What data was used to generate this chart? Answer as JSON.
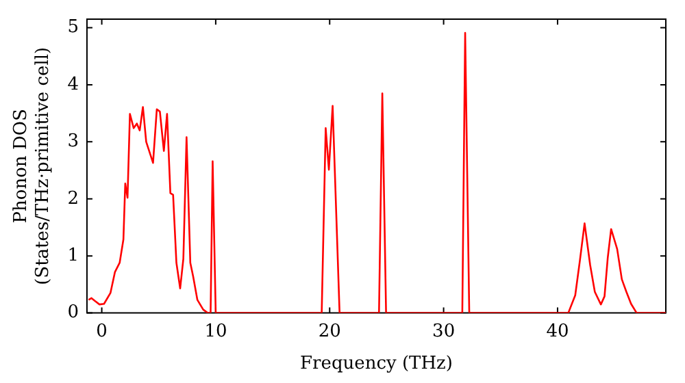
{
  "chart_data": {
    "type": "line",
    "xlabel": "Frequency (THz)",
    "ylabel": "Phonon DOS\n(States/THz·primitive cell)",
    "xlim": [
      -1.3,
      49.5
    ],
    "ylim": [
      0,
      5.15
    ],
    "xticks": [
      0,
      10,
      20,
      30,
      40
    ],
    "yticks": [
      0,
      1,
      2,
      3,
      4,
      5
    ],
    "grid": false,
    "legend": false,
    "marker": "none",
    "line_style": "solid",
    "series": [
      {
        "color": "#ff0000",
        "x": [
          -1.16,
          -0.9,
          -0.6,
          -0.2,
          0.2,
          0.76,
          1.16,
          1.57,
          1.9,
          2.06,
          2.26,
          2.47,
          2.8,
          3.08,
          3.33,
          3.61,
          3.9,
          4.5,
          4.83,
          5.1,
          5.45,
          5.73,
          6.02,
          6.26,
          6.55,
          6.88,
          7.16,
          7.44,
          7.77,
          8.02,
          8.39,
          8.9,
          9.3,
          9.55,
          9.73,
          10.0,
          19.3,
          19.65,
          19.93,
          20.26,
          20.87,
          24.33,
          24.62,
          24.95,
          31.64,
          31.89,
          32.25,
          40.94,
          41.55,
          41.96,
          42.37,
          42.86,
          43.27,
          43.8,
          44.12,
          44.4,
          44.7,
          45.23,
          45.64,
          46.04,
          46.45,
          46.94,
          49.5
        ],
        "values": [
          0.23,
          0.26,
          0.21,
          0.15,
          0.16,
          0.35,
          0.72,
          0.88,
          1.29,
          2.27,
          2.02,
          3.49,
          3.24,
          3.32,
          3.2,
          3.61,
          3.0,
          2.63,
          3.57,
          3.53,
          2.84,
          3.49,
          2.1,
          2.07,
          0.88,
          0.43,
          0.95,
          3.08,
          0.88,
          0.64,
          0.23,
          0.06,
          0,
          0,
          2.66,
          0,
          0,
          3.24,
          2.51,
          3.63,
          0,
          0,
          3.85,
          0,
          0,
          4.91,
          0,
          0,
          0.31,
          0.92,
          1.57,
          0.84,
          0.37,
          0.15,
          0.29,
          0.96,
          1.47,
          1.12,
          0.59,
          0.37,
          0.16,
          0,
          0
        ]
      }
    ]
  }
}
